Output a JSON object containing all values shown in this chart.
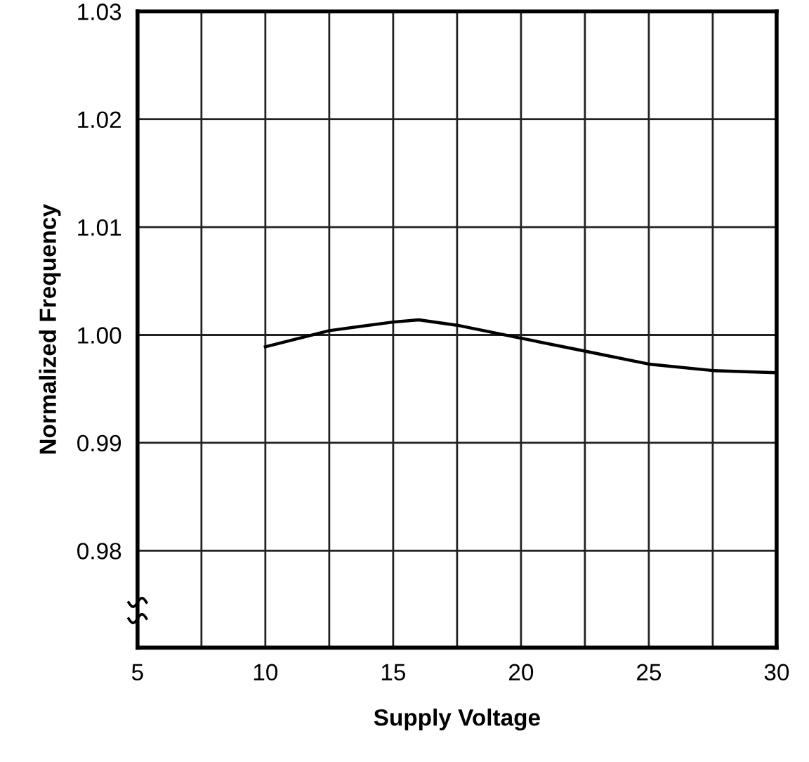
{
  "chart_data": {
    "type": "line",
    "xlabel": "Supply Voltage",
    "ylabel": "Normalized Frequency",
    "x": [
      10,
      12.5,
      15,
      16,
      17.5,
      20,
      22.5,
      25,
      27.5,
      30
    ],
    "series": [
      {
        "color": "#000000",
        "values": [
          0.9989,
          1.0004,
          1.0012,
          1.0014,
          1.0009,
          0.9997,
          0.9985,
          0.9973,
          0.9967,
          0.9965
        ]
      }
    ],
    "xlim": [
      5,
      30
    ],
    "xticks": [
      5,
      {
        "value": 7.5,
        "label": null
      },
      10,
      {
        "value": 12.5,
        "label": null
      },
      15,
      {
        "value": 17.5,
        "label": null
      },
      20,
      {
        "value": 22.5,
        "label": null
      },
      25,
      {
        "value": 27.5,
        "label": null
      },
      30
    ],
    "ylim": [
      0.971,
      1.03
    ],
    "yticks": [
      0.98,
      0.99,
      {
        "value": 1.0,
        "label": "1.00"
      },
      1.01,
      1.02,
      1.03
    ],
    "grid": true,
    "legend": false,
    "marker": "none",
    "line_style": "solid"
  }
}
